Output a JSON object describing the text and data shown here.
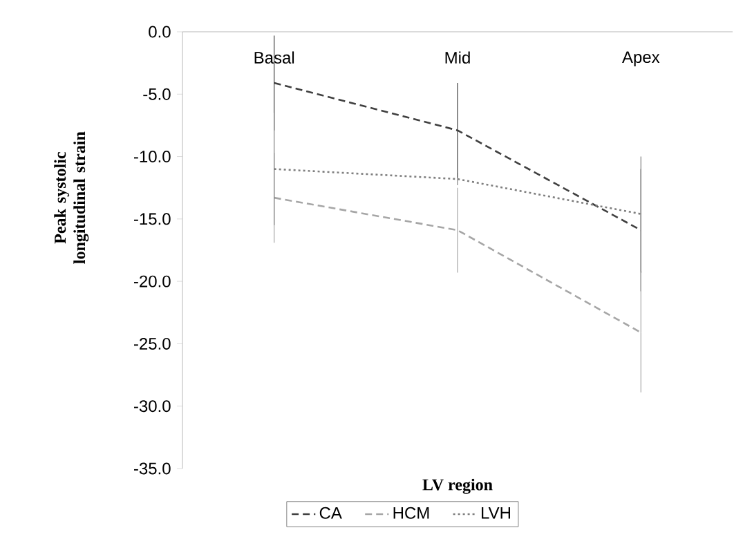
{
  "chart_data": {
    "type": "line",
    "xlabel": "LV region",
    "ylabel": "Peak systolic longitudinal strain",
    "categories": [
      "Basal",
      "Mid",
      "Apex"
    ],
    "series": [
      {
        "name": "CA",
        "color": "#404040",
        "line_style": "dashed",
        "values": [
          -4.1,
          -7.9,
          -15.9
        ],
        "errors": [
          3.8,
          3.8,
          4.9
        ]
      },
      {
        "name": "HCM",
        "color": "#a6a6a6",
        "line_style": "dashed",
        "values": [
          -13.3,
          -15.9,
          -24.1
        ],
        "errors": [
          3.6,
          3.4,
          4.8
        ]
      },
      {
        "name": "LVH",
        "color": "#7f7f7f",
        "line_style": "dotted",
        "values": [
          -11.0,
          -11.8,
          -14.6
        ],
        "errors": [
          4.5,
          0.5,
          4.6
        ]
      }
    ],
    "ylim": [
      -35,
      0
    ],
    "yticks": [
      {
        "value": -35,
        "label": "-35.0"
      },
      {
        "value": -30,
        "label": "-30.0"
      },
      {
        "value": -25,
        "label": "-25.0"
      },
      {
        "value": -20,
        "label": "-20.0"
      },
      {
        "value": -15,
        "label": "-15.0"
      },
      {
        "value": -10,
        "label": "-10.0"
      },
      {
        "value": -5,
        "label": "-5.0"
      },
      {
        "value": 0,
        "label": "0.0"
      }
    ],
    "grid": false,
    "legend": "bottom",
    "marker": "none"
  }
}
